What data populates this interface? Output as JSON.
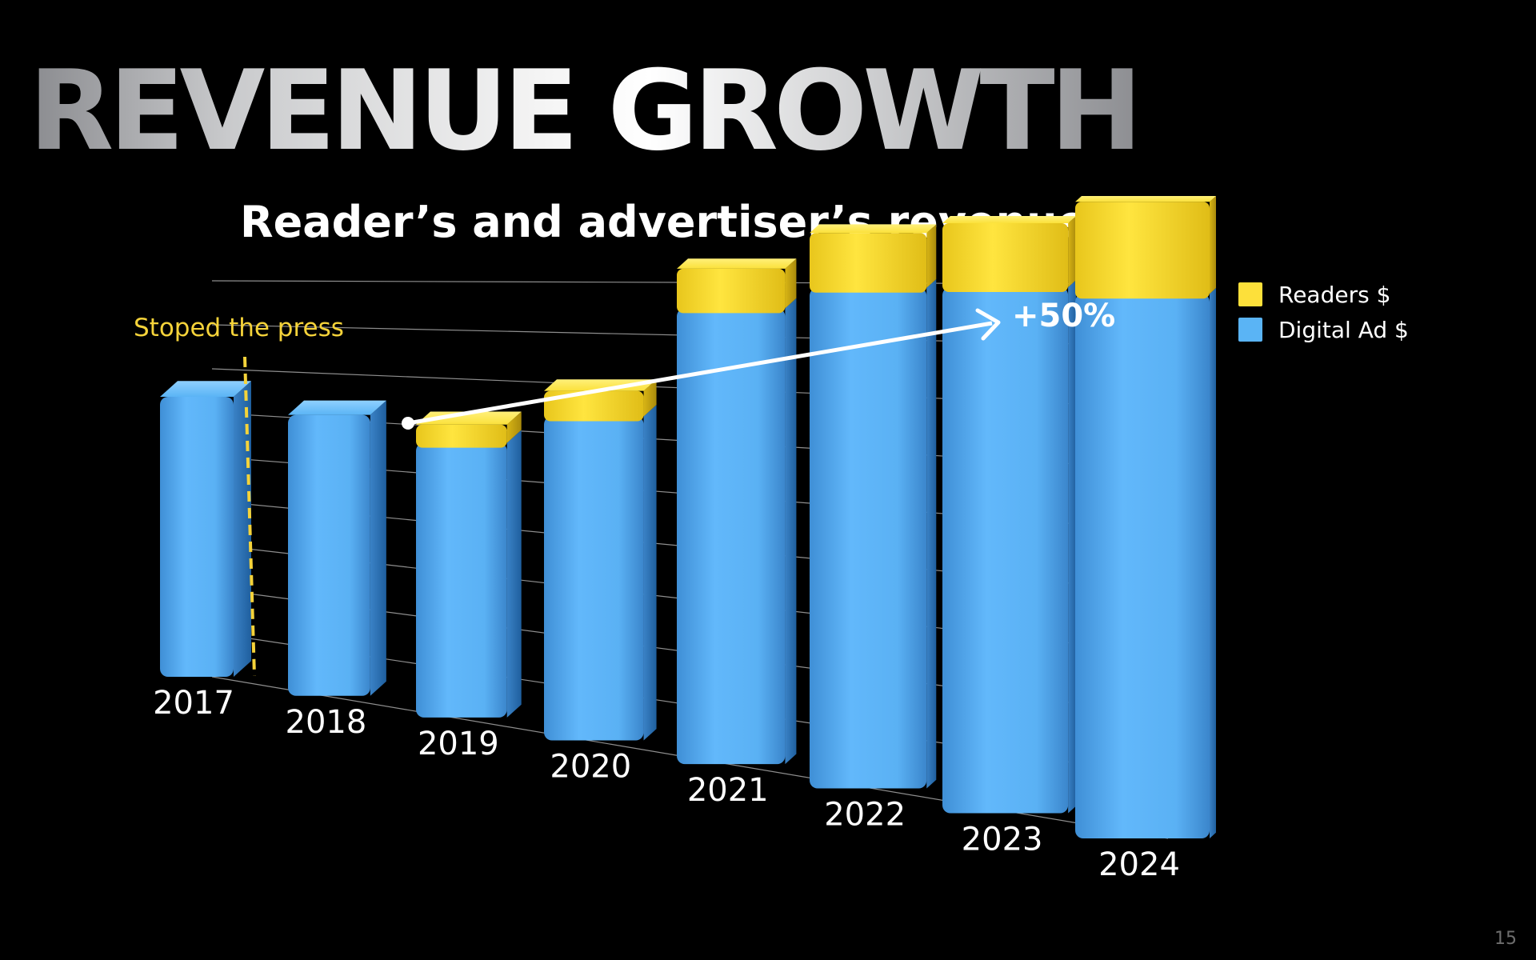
{
  "slide": {
    "title": "REVENUE GROWTH",
    "page_number": "15"
  },
  "chart_data": {
    "type": "bar",
    "stacked": true,
    "title": "Reader’s and advertiser’s revenue",
    "categories": [
      "2017",
      "2018",
      "2019",
      "2020",
      "2021",
      "2022",
      "2023",
      "2024"
    ],
    "series": [
      {
        "name": "Digital Ad $",
        "color": "#5ab4f5",
        "values": [
          100,
          96,
          90,
          102,
          138,
          146,
          148,
          148
        ]
      },
      {
        "name": "Readers $",
        "color": "#fde03a",
        "values": [
          0,
          0,
          6,
          8,
          12,
          16,
          18,
          25
        ]
      }
    ],
    "ylim": [
      0,
      200
    ],
    "gridlines": true,
    "legend_position": "top-right",
    "annotations": [
      {
        "text": "Stoped the press",
        "color": "#f5d33a",
        "marker": "dashed vertical line between 2017 and 2018"
      },
      {
        "text": "+50%",
        "color": "#ffffff",
        "marker": "arrow from 2019 toward 2024"
      }
    ]
  }
}
